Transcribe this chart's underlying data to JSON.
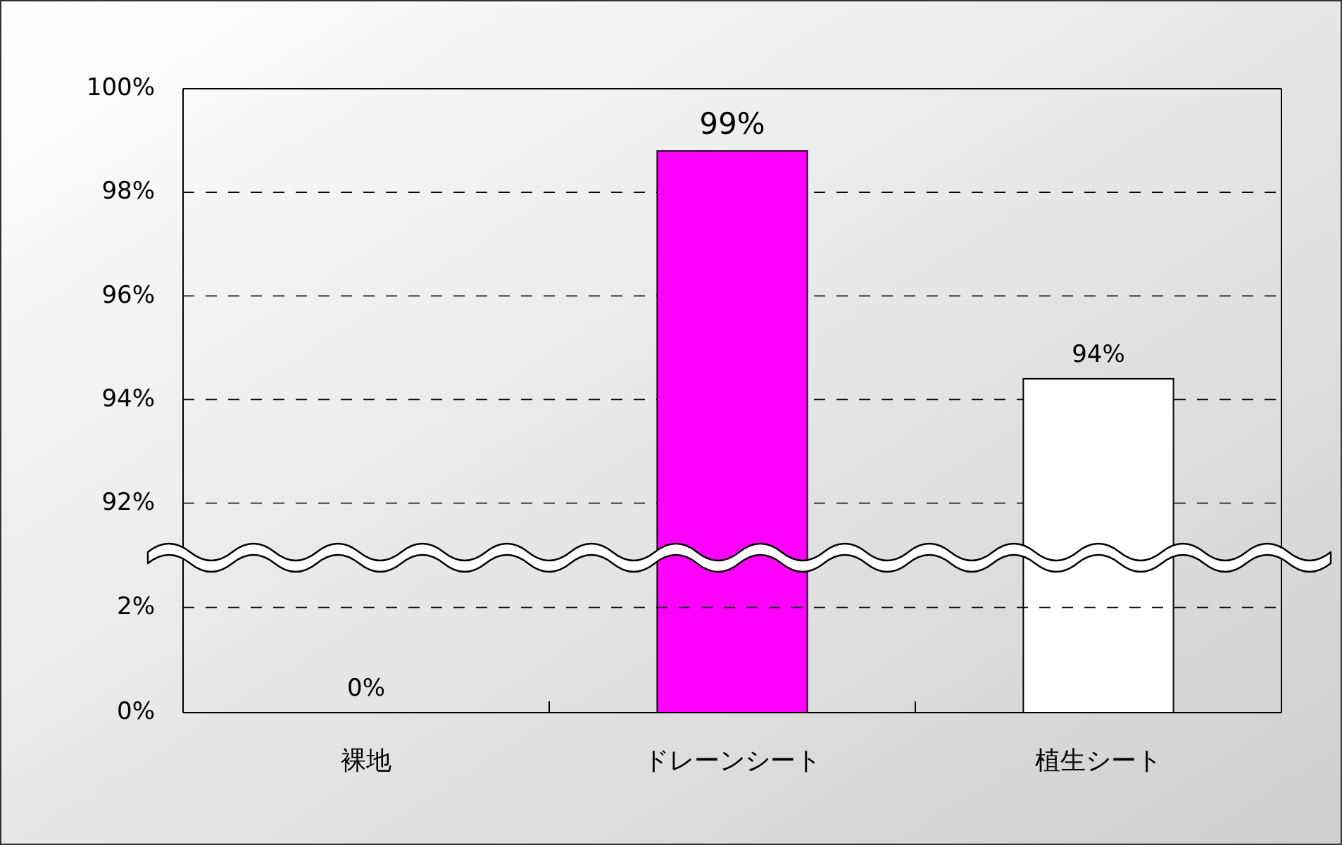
{
  "chart_data": [
    {
      "type": "bar",
      "categories": [
        null,
        null,
        null
      ],
      "values": [
        null,
        98.8,
        94.4
      ],
      "colors": [
        null,
        "#ff00ff",
        "#ffffff"
      ],
      "value_labels": [
        null,
        "99%",
        "94%"
      ],
      "ylim": [
        91,
        100
      ],
      "yticks": [
        {
          "value": 92,
          "label": "92%"
        },
        {
          "value": 94,
          "label": "94%"
        },
        {
          "value": 96,
          "label": "96%"
        },
        {
          "value": 98,
          "label": "98%"
        },
        {
          "value": 100,
          "label": "100%"
        }
      ],
      "grid": "y",
      "tick_labels": "y"
    },
    {
      "type": "bar",
      "categories": [
        "裸地",
        "ドレーンシート",
        "植生シート"
      ],
      "values": [
        0,
        null,
        null
      ],
      "colors": [
        "#ffffff",
        null,
        null
      ],
      "value_labels": [
        "0%",
        null,
        null
      ],
      "ylim": [
        0,
        3
      ],
      "yticks": [
        {
          "value": 0,
          "label": "0%"
        },
        {
          "value": 2,
          "label": "2%"
        }
      ],
      "grid": "y"
    }
  ]
}
